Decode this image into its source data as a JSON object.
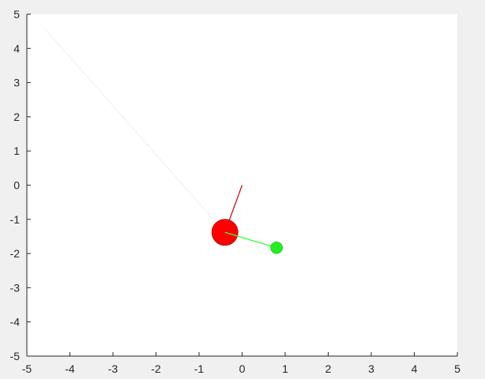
{
  "chart_data": {
    "type": "scatter",
    "title": "",
    "xlabel": "",
    "ylabel": "",
    "xlim": [
      -5,
      5
    ],
    "ylim": [
      -5,
      5
    ],
    "x_ticks": [
      "-5",
      "-4",
      "-3",
      "-2",
      "-1",
      "0",
      "1",
      "2",
      "3",
      "4",
      "5"
    ],
    "y_ticks": [
      "5",
      "4",
      "3",
      "2",
      "1",
      "0",
      "-1",
      "-2",
      "-3",
      "-4",
      "-5"
    ],
    "grid": false,
    "background_color": "#ffffff",
    "figure_color": "#f0f0f0",
    "elements": {
      "trail": {
        "color": "#f4f4f4",
        "points": [
          [
            -4.6,
            4.6
          ],
          [
            -0.4,
            -1.38
          ]
        ]
      },
      "link1": {
        "color": "#cc0000",
        "from": [
          0,
          0
        ],
        "to": [
          -0.4,
          -1.38
        ]
      },
      "mass1": {
        "color": "#ff0000",
        "x": -0.4,
        "y": -1.38,
        "size": "large"
      },
      "link2": {
        "color": "#33ff33",
        "from": [
          -0.4,
          -1.38
        ],
        "to": [
          0.8,
          -1.83
        ]
      },
      "mass2": {
        "color": "#22ee22",
        "x": 0.8,
        "y": -1.83,
        "size": "small"
      }
    }
  }
}
